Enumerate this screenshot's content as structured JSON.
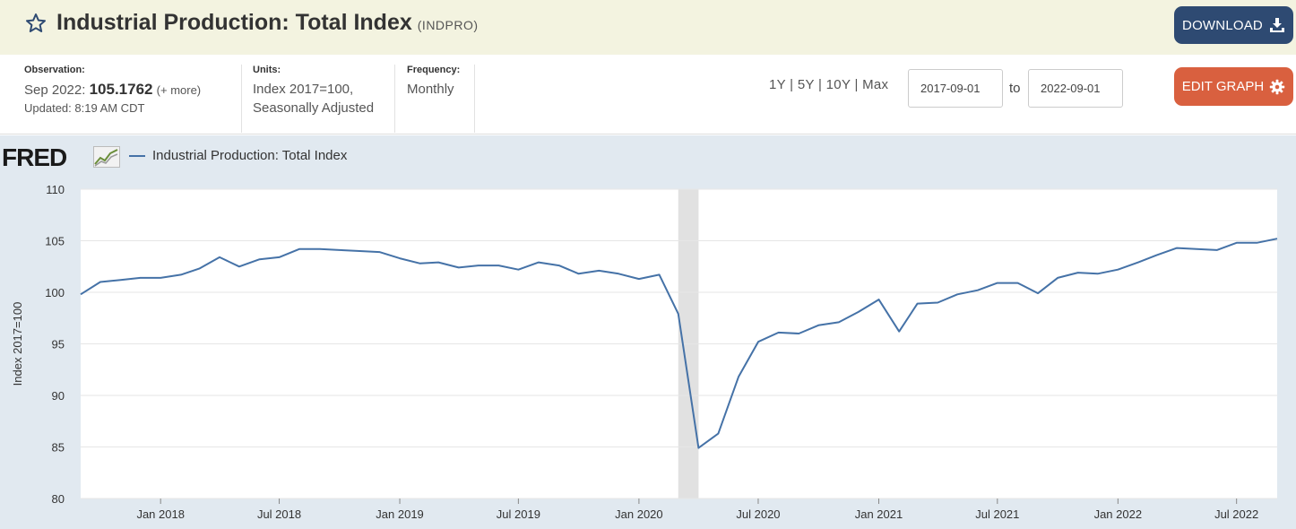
{
  "header": {
    "title": "Industrial Production: Total Index",
    "series_code": "(INDPRO)",
    "download_label": "DOWNLOAD"
  },
  "info": {
    "observation_label": "Observation:",
    "observation_date": "Sep 2022:",
    "observation_value": "105.1762",
    "observation_more": "(+ more)",
    "updated": "Updated: 8:19 AM CDT",
    "units_label": "Units:",
    "units_line1": "Index 2017=100,",
    "units_line2": "Seasonally Adjusted",
    "frequency_label": "Frequency:",
    "frequency_value": "Monthly"
  },
  "controls": {
    "ranges": [
      "1Y",
      "5Y",
      "10Y",
      "Max"
    ],
    "start_date": "2017-09-01",
    "to_label": "to",
    "end_date": "2022-09-01",
    "edit_label": "EDIT GRAPH"
  },
  "colors": {
    "series": "#4572a7",
    "recession": "#e1e1e1",
    "download_bg": "#2e4a72",
    "edit_bg": "#d9603f"
  },
  "chart_data": {
    "type": "line",
    "logo": "FRED",
    "legend": "Industrial Production: Total Index",
    "ylabel": "Index 2017=100",
    "ylim": [
      80,
      110
    ],
    "yticks": [
      80,
      85,
      90,
      95,
      100,
      105,
      110
    ],
    "xlim": [
      "2017-09-01",
      "2022-09-01"
    ],
    "xticks": [
      {
        "date": "2018-01-01",
        "label": "Jan 2018"
      },
      {
        "date": "2018-07-01",
        "label": "Jul 2018"
      },
      {
        "date": "2019-01-01",
        "label": "Jan 2019"
      },
      {
        "date": "2019-07-01",
        "label": "Jul 2019"
      },
      {
        "date": "2020-01-01",
        "label": "Jan 2020"
      },
      {
        "date": "2020-07-01",
        "label": "Jul 2020"
      },
      {
        "date": "2021-01-01",
        "label": "Jan 2021"
      },
      {
        "date": "2021-07-01",
        "label": "Jul 2021"
      },
      {
        "date": "2022-01-01",
        "label": "Jan 2022"
      },
      {
        "date": "2022-07-01",
        "label": "Jul 2022"
      }
    ],
    "recessions": [
      {
        "start": "2020-03-01",
        "end": "2020-04-01"
      }
    ],
    "series": [
      {
        "name": "Industrial Production: Total Index",
        "x": [
          "2017-09-01",
          "2017-10-01",
          "2017-11-01",
          "2017-12-01",
          "2018-01-01",
          "2018-02-01",
          "2018-03-01",
          "2018-04-01",
          "2018-05-01",
          "2018-06-01",
          "2018-07-01",
          "2018-08-01",
          "2018-09-01",
          "2018-10-01",
          "2018-11-01",
          "2018-12-01",
          "2019-01-01",
          "2019-02-01",
          "2019-03-01",
          "2019-04-01",
          "2019-05-01",
          "2019-06-01",
          "2019-07-01",
          "2019-08-01",
          "2019-09-01",
          "2019-10-01",
          "2019-11-01",
          "2019-12-01",
          "2020-01-01",
          "2020-02-01",
          "2020-03-01",
          "2020-04-01",
          "2020-05-01",
          "2020-06-01",
          "2020-07-01",
          "2020-08-01",
          "2020-09-01",
          "2020-10-01",
          "2020-11-01",
          "2020-12-01",
          "2021-01-01",
          "2021-02-01",
          "2021-03-01",
          "2021-04-01",
          "2021-05-01",
          "2021-06-01",
          "2021-07-01",
          "2021-08-01",
          "2021-09-01",
          "2021-10-01",
          "2021-11-01",
          "2021-12-01",
          "2022-01-01",
          "2022-02-01",
          "2022-03-01",
          "2022-04-01",
          "2022-05-01",
          "2022-06-01",
          "2022-07-01",
          "2022-08-01",
          "2022-09-01"
        ],
        "values": [
          99.8,
          101.0,
          101.2,
          101.4,
          101.4,
          101.7,
          102.3,
          103.4,
          102.5,
          103.2,
          103.4,
          104.2,
          104.2,
          104.1,
          104.0,
          103.9,
          103.3,
          102.8,
          102.9,
          102.4,
          102.6,
          102.6,
          102.2,
          102.9,
          102.6,
          101.8,
          102.1,
          101.8,
          101.3,
          101.7,
          97.9,
          84.9,
          86.3,
          91.8,
          95.2,
          96.1,
          96.0,
          96.8,
          97.1,
          98.1,
          99.3,
          96.2,
          98.9,
          99.0,
          99.8,
          100.2,
          100.9,
          100.9,
          99.9,
          101.4,
          101.9,
          101.8,
          102.2,
          102.9,
          103.6,
          104.3,
          104.2,
          104.1,
          104.8,
          104.8,
          105.2
        ]
      }
    ]
  }
}
